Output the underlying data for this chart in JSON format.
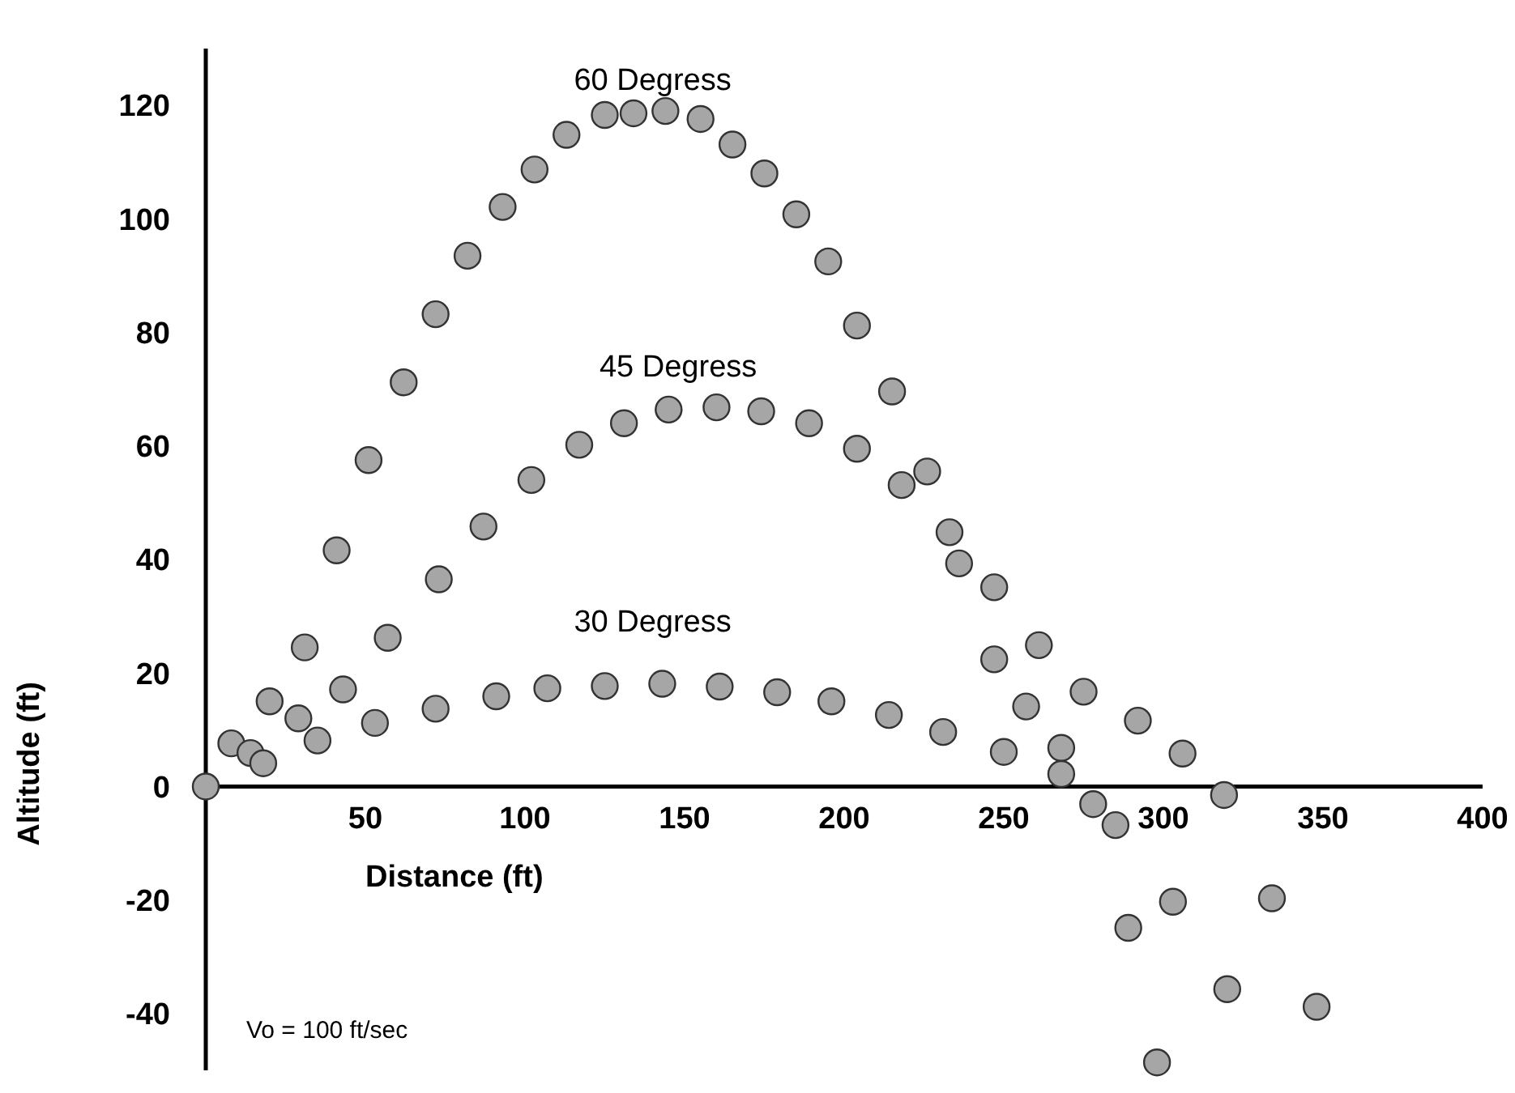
{
  "chart_data": {
    "type": "scatter",
    "xlabel": "Distance (ft)",
    "ylabel": "Altitude (ft)",
    "annotations": [
      "60 Degress",
      "45 Degress",
      "30 Degress",
      "Vo =  100 ft/sec"
    ],
    "xlim": [
      0,
      400
    ],
    "ylim": [
      -50,
      130
    ],
    "xticks": [
      50,
      100,
      150,
      200,
      250,
      300,
      350,
      400
    ],
    "yticks": [
      -40,
      -20,
      0,
      20,
      40,
      60,
      80,
      100,
      120
    ],
    "grid": false,
    "marker": "circle",
    "series": [
      {
        "color": "#a6a6a6",
        "x": [
          0,
          8,
          14,
          18,
          20,
          29,
          31,
          35,
          43,
          41,
          51,
          53,
          57,
          62,
          72,
          73,
          72,
          82,
          87,
          91,
          93,
          102,
          103,
          107,
          113,
          117,
          125,
          125,
          131,
          134,
          143,
          144,
          145,
          155,
          160,
          161,
          165,
          174,
          175,
          179,
          185,
          189,
          195,
          196,
          204,
          204,
          214,
          215,
          218,
          226,
          231,
          233,
          236,
          247,
          247,
          250,
          257,
          261,
          268,
          268,
          275,
          278,
          285,
          292,
          306,
          319,
          289,
          303,
          334,
          320,
          348,
          298
        ],
        "values": [
          0,
          7.6,
          5.9,
          4.1,
          15,
          12,
          24.5,
          8.1,
          17.1,
          41.6,
          57.5,
          11.2,
          26.2,
          71.2,
          13.7,
          36.5,
          83.2,
          93.5,
          45.8,
          15.9,
          102.1,
          54,
          108.7,
          17.3,
          114.8,
          60.2,
          118.3,
          17.7,
          64,
          118.6,
          18.1,
          119,
          66.4,
          117.6,
          66.8,
          17.6,
          113.1,
          66.1,
          108,
          16.6,
          100.8,
          64,
          92.5,
          15,
          81.2,
          59.5,
          12.6,
          69.6,
          53.1,
          55.5,
          9.6,
          44.8,
          39.3,
          35.1,
          22.4,
          6.1,
          14.1,
          24.9,
          6.8,
          2.2,
          16.7,
          -3.1,
          -6.8,
          11.6,
          5.8,
          -1.5,
          -24.9,
          -20.3,
          -19.7,
          -35.7,
          -38.8,
          -48.6
        ]
      }
    ]
  }
}
